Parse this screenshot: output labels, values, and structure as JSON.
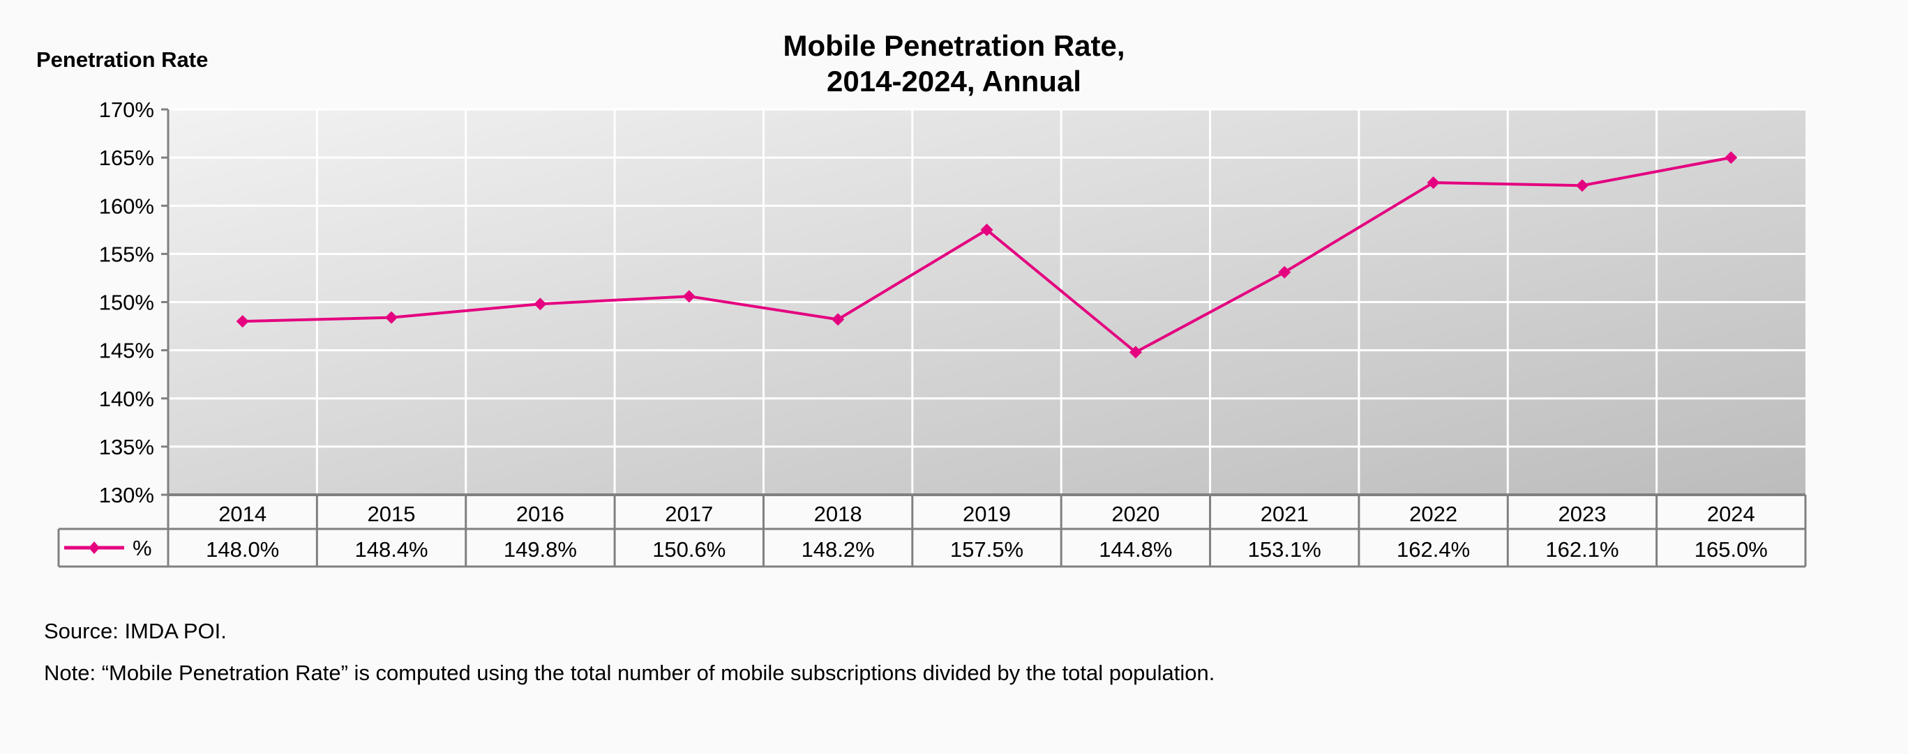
{
  "chart_data": {
    "type": "line",
    "title_line1": "Mobile Penetration Rate,",
    "title_line2": "2014-2024, Annual",
    "ylabel": "Penetration Rate",
    "xlabel": "",
    "ylim": [
      130,
      170
    ],
    "yticks": [
      "130%",
      "135%",
      "140%",
      "145%",
      "150%",
      "155%",
      "160%",
      "165%",
      "170%"
    ],
    "ytick_values": [
      130,
      135,
      140,
      145,
      150,
      155,
      160,
      165,
      170
    ],
    "grid": true,
    "categories": [
      "2014",
      "2015",
      "2016",
      "2017",
      "2018",
      "2019",
      "2020",
      "2021",
      "2022",
      "2023",
      "2024"
    ],
    "series": [
      {
        "name": "%",
        "color": "#e4007f",
        "marker": "diamond",
        "values": [
          148.0,
          148.4,
          149.8,
          150.6,
          148.2,
          157.5,
          144.8,
          153.1,
          162.4,
          162.1,
          165.0
        ],
        "labels": [
          "148.0%",
          "148.4%",
          "149.8%",
          "150.6%",
          "148.2%",
          "157.5%",
          "144.8%",
          "153.1%",
          "162.4%",
          "162.1%",
          "165.0%"
        ]
      }
    ],
    "data_table": true,
    "legend_placement": "data-table"
  },
  "footer": {
    "source": "Source: IMDA POI.",
    "note": "Note: “Mobile Penetration Rate” is computed using the total number of mobile subscriptions divided by the total population."
  }
}
